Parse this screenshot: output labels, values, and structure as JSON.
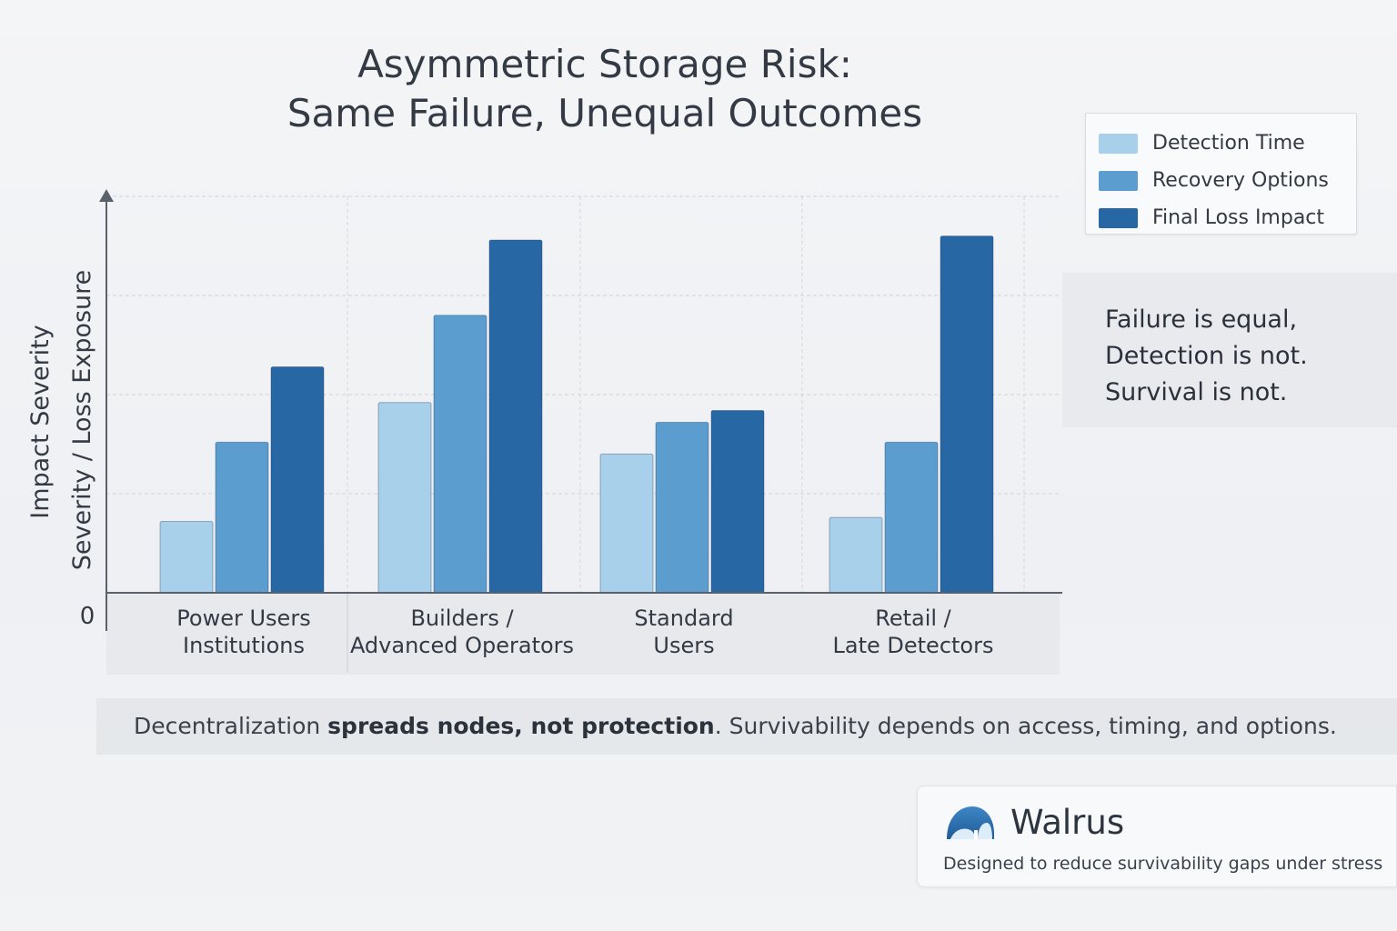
{
  "chart_data": {
    "type": "bar",
    "title_lines": [
      "Asymmetric Storage Risk:",
      "Same Failure, Unequal Outcomes"
    ],
    "ylabel_lines": [
      "Impact Severity",
      "Severity / Loss Exposure"
    ],
    "y_zero_label": "0",
    "ylim": [
      0,
      100
    ],
    "grid": true,
    "legend_position": "top-right",
    "categories": [
      {
        "lines": [
          "Power Users",
          "Institutions"
        ]
      },
      {
        "lines": [
          "Builders /",
          "Advanced Operators"
        ]
      },
      {
        "lines": [
          "Standard",
          "Users"
        ]
      },
      {
        "lines": [
          "Retail /",
          "Late Detectors"
        ]
      }
    ],
    "series": [
      {
        "name": "Detection Time",
        "color": "#a9d0ea",
        "values": [
          18,
          48,
          35,
          19
        ]
      },
      {
        "name": "Recovery Options",
        "color": "#5b9dcf",
        "values": [
          38,
          70,
          43,
          38
        ]
      },
      {
        "name": "Final Loss Impact",
        "color": "#2767a4",
        "values": [
          57,
          89,
          46,
          90
        ]
      }
    ]
  },
  "callout": {
    "lines": [
      "Failure is equal,",
      "Detection is not.",
      "Survival is not."
    ]
  },
  "caption": {
    "part1": "Decentralization ",
    "bold": "spreads nodes, not protection",
    "part2": ". Survivability depends on access, timing, and options."
  },
  "brand": {
    "name": "Walrus",
    "tagline": "Designed to reduce survivability gaps under stress",
    "logo_icon": "walrus-logo-icon"
  }
}
